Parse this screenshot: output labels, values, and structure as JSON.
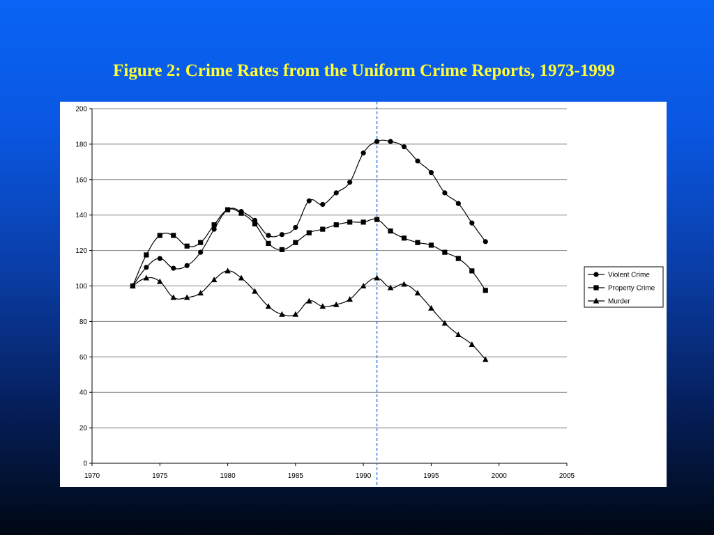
{
  "slide": {
    "title": "Figure 2: Crime Rates from the Uniform Crime Reports, 1973-1999"
  },
  "colors": {
    "background_top": "#0a64f5",
    "background_bottom": "#000814",
    "title": "#ffff33",
    "gridline": "#808080",
    "series_line": "#000000",
    "reference_line": "#1a6fe0"
  },
  "chart_data": {
    "type": "line",
    "title": "",
    "xlabel": "",
    "ylabel": "",
    "xlim": [
      1970,
      2005
    ],
    "ylim": [
      0,
      200
    ],
    "x_ticks": [
      1970,
      1975,
      1980,
      1985,
      1990,
      1995,
      2000,
      2005
    ],
    "y_ticks": [
      0,
      20,
      40,
      60,
      80,
      100,
      120,
      140,
      160,
      180,
      200
    ],
    "grid": "horizontal",
    "legend_position": "right",
    "reference_line_x": 1991,
    "x": [
      1973,
      1974,
      1975,
      1976,
      1977,
      1978,
      1979,
      1980,
      1981,
      1982,
      1983,
      1984,
      1985,
      1986,
      1987,
      1988,
      1989,
      1990,
      1991,
      1992,
      1993,
      1994,
      1995,
      1996,
      1997,
      1998,
      1999
    ],
    "series": [
      {
        "name": "Violent Crime",
        "marker": "circle",
        "values": [
          100,
          110.5,
          115.5,
          110,
          111.5,
          119,
          132,
          143,
          142,
          137,
          128.5,
          129,
          133,
          148,
          146,
          152.5,
          158.5,
          175,
          181.5,
          181.5,
          178.5,
          170.5,
          164,
          152.5,
          146.5,
          135.5,
          125
        ]
      },
      {
        "name": "Property Crime",
        "marker": "square",
        "values": [
          100,
          117.5,
          128.5,
          128.5,
          122.5,
          124.5,
          134.5,
          143,
          141,
          135,
          124,
          120.5,
          124.5,
          130,
          132,
          134.5,
          136,
          136,
          137.5,
          131,
          127,
          124.5,
          123,
          119,
          115.5,
          108.5,
          97.5
        ]
      },
      {
        "name": "Murder",
        "marker": "triangle",
        "values": [
          100,
          104.5,
          102.5,
          93.5,
          93.5,
          96,
          103.5,
          108.5,
          104.5,
          97,
          88.5,
          84,
          84,
          91.5,
          88.5,
          89.5,
          92.5,
          100,
          104.5,
          99,
          101,
          96,
          87.5,
          79,
          72.5,
          67,
          58.5
        ]
      }
    ]
  }
}
